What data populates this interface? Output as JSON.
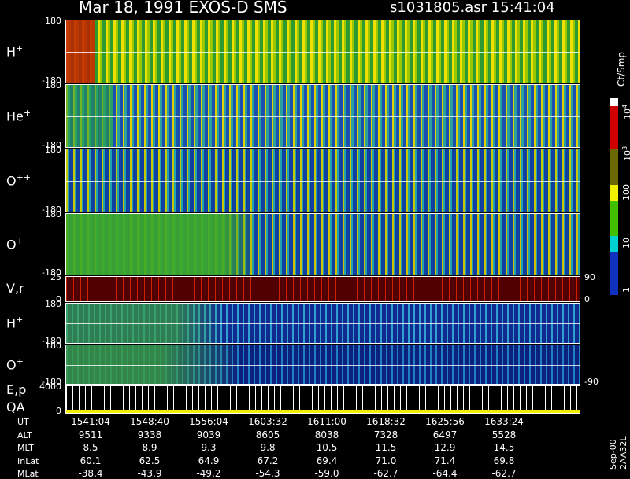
{
  "header": {
    "title": "Mar 18, 1991   EXOS-D SMS",
    "file": "s1031805.asr  15:41:04"
  },
  "panels": [
    {
      "label": "H",
      "sup": "+",
      "top": "180",
      "bottom": "-180"
    },
    {
      "label": "He",
      "sup": "+",
      "top": "180",
      "bottom": "-180"
    },
    {
      "label": "O",
      "sup": "++",
      "top": "180",
      "bottom": "-180"
    },
    {
      "label": "O",
      "sup": "+",
      "top": "180",
      "bottom": "-180"
    },
    {
      "label": "V,r",
      "top": "25",
      "bottom": "0",
      "right_top": "90",
      "right_bottom": "0"
    },
    {
      "label": "H",
      "sup": "+",
      "top": "180",
      "bottom": "-180"
    },
    {
      "label": "O",
      "sup": "+",
      "top": "180",
      "bottom": "-180",
      "right_bottom": "-90"
    },
    {
      "label": "E,p",
      "label2": "QA",
      "top": "4000",
      "bottom": "0"
    }
  ],
  "colorbar": {
    "unit": "Ct/Smp",
    "labels": [
      {
        "base": "10",
        "exp": "4"
      },
      {
        "base": "10",
        "exp": "3"
      },
      {
        "base": "100"
      },
      {
        "base": "10"
      },
      {
        "base": "1"
      }
    ]
  },
  "table": {
    "rows": [
      {
        "name": "UT",
        "cells": [
          "1541:04",
          "1548:40",
          "1556:04",
          "1603:32",
          "1611:00",
          "1618:32",
          "1625:56",
          "1633:24"
        ]
      },
      {
        "name": "ALT",
        "cells": [
          "9511",
          "9338",
          "9039",
          "8605",
          "8038",
          "7328",
          "6497",
          "5528"
        ]
      },
      {
        "name": "MLT",
        "cells": [
          "8.5",
          "8.9",
          "9.3",
          "9.8",
          "10.5",
          "11.5",
          "12.9",
          "14.5"
        ]
      },
      {
        "name": "InLat",
        "cells": [
          "60.1",
          "62.5",
          "64.9",
          "67.2",
          "69.4",
          "71.0",
          "71.4",
          "69.8"
        ]
      },
      {
        "name": "MLat",
        "cells": [
          "-38.4",
          "-43.9",
          "-49.2",
          "-54.3",
          "-59.0",
          "-62.7",
          "-64.4",
          "-62.7"
        ]
      }
    ]
  },
  "footer": "Sep-00  2AA32L"
}
